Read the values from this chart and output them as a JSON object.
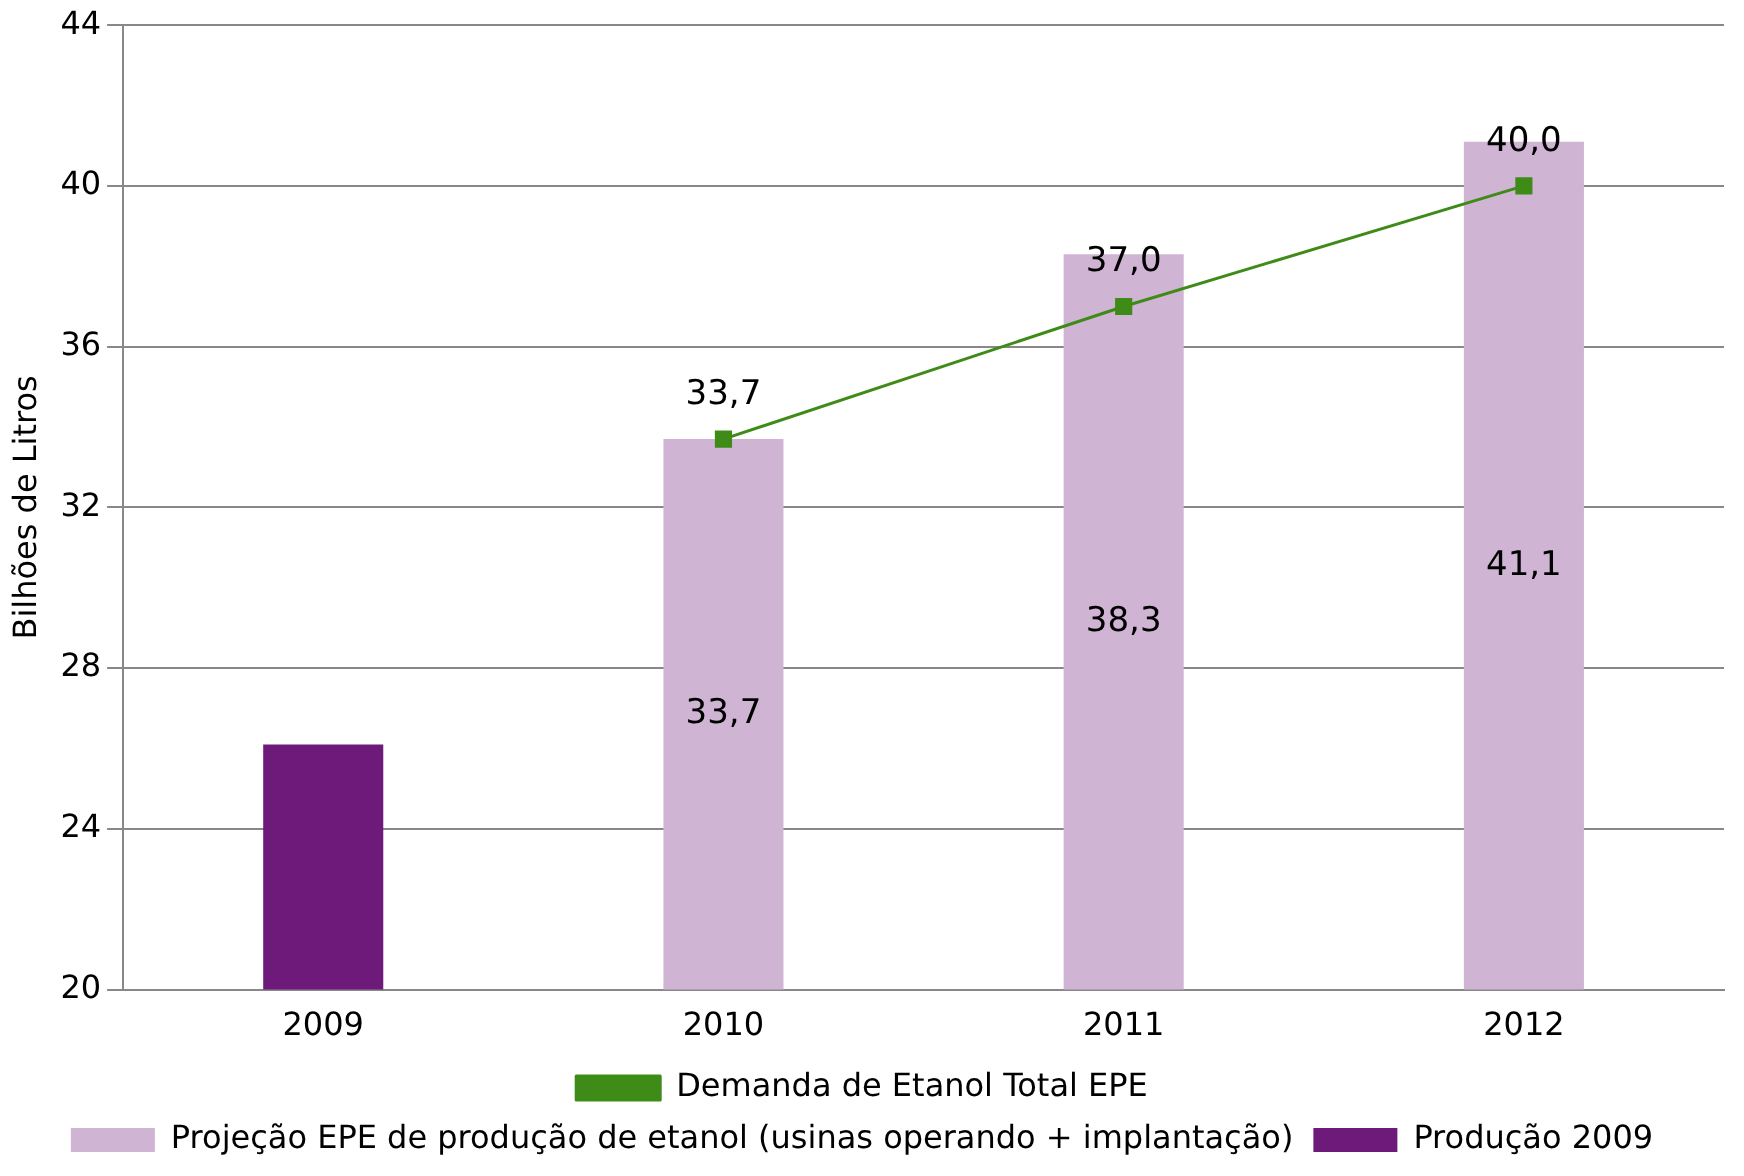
{
  "chart_data": {
    "type": "bar",
    "categories": [
      "2009",
      "2010",
      "2011",
      "2012"
    ],
    "ylabel": "Bilhões de Litros",
    "ylim": [
      20,
      44
    ],
    "yticks": [
      20,
      24,
      28,
      32,
      36,
      40,
      44
    ],
    "grid": "y",
    "legend": "bottom",
    "series": [
      {
        "name": "Projeção EPE de produção de etanol (usinas operando + implantação)",
        "color": "#d0b4d4",
        "values": [
          null,
          33.7,
          38.3,
          41.1
        ],
        "value_labels": [
          null,
          "33,7",
          "38,3",
          "41,1"
        ]
      },
      {
        "name": "Produção 2009",
        "color": "#6d1a7a",
        "values": [
          26.1,
          null,
          null,
          null
        ]
      },
      {
        "name": "Demanda de Etanol Total EPE",
        "type": "line",
        "color": "#3f8b17",
        "marker": "square",
        "values": [
          null,
          33.7,
          37.0,
          40.0
        ],
        "value_labels": [
          null,
          "33,7",
          "37,0",
          "40,0"
        ]
      }
    ]
  }
}
